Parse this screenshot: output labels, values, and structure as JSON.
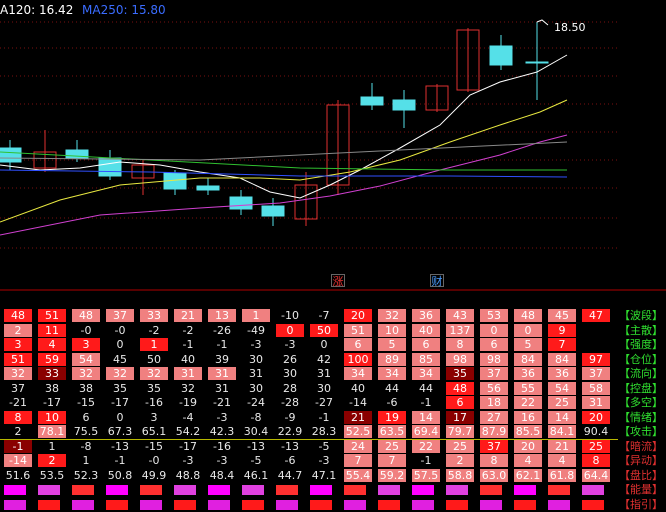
{
  "header": {
    "ma120_label": "A120: 16.42",
    "ma250_label": "MA250: 15.80"
  },
  "chart": {
    "peak_label": "18.50",
    "marker_a": "涨",
    "marker_b": "财",
    "colors": {
      "up": "#e03030",
      "down": "#55e0e8",
      "ma1": "#ffffff",
      "ma2": "#e8e840",
      "ma3": "#d040d0",
      "ma4": "#30c030",
      "ma5": "#3050ff",
      "ma6": "#888888"
    }
  },
  "grid": {
    "rows": [
      {
        "label": "【波段】",
        "label_color": "#30e030",
        "values": [
          "48",
          "51",
          "48",
          "37",
          "33",
          "21",
          "13",
          "1",
          "-10",
          "-7",
          "20",
          "32",
          "36",
          "43",
          "53",
          "48",
          "45",
          "47"
        ],
        "colors": [
          "r",
          "R",
          "P",
          "P",
          "P",
          "P",
          "P",
          "P",
          "n",
          "n",
          "R",
          "P",
          "P",
          "P",
          "P",
          "P",
          "P",
          "R"
        ]
      },
      {
        "label": "【主散】",
        "label_color": "#30e030",
        "values": [
          "2",
          "11",
          "-0",
          "-0",
          "-2",
          "-2",
          "-26",
          "-49",
          "0",
          "50",
          "51",
          "10",
          "40",
          "137",
          "0",
          "0",
          "9",
          ""
        ],
        "colors": [
          "P",
          "R",
          "n",
          "n",
          "n",
          "n",
          "n",
          "n",
          "R",
          "R",
          "P",
          "P",
          "P",
          "P",
          "P",
          "P",
          "R",
          "n"
        ]
      },
      {
        "label": "【强度】",
        "label_color": "#30e030",
        "values": [
          "3",
          "4",
          "3",
          "0",
          "1",
          "-1",
          "-1",
          "-3",
          "-3",
          "0",
          "6",
          "5",
          "6",
          "8",
          "6",
          "5",
          "7",
          ""
        ],
        "colors": [
          "R",
          "R",
          "R",
          "n",
          "R",
          "n",
          "n",
          "n",
          "n",
          "n",
          "P",
          "P",
          "P",
          "P",
          "P",
          "P",
          "R",
          "n"
        ]
      },
      {
        "label": "【仓位】",
        "label_color": "#30e030",
        "values": [
          "51",
          "59",
          "54",
          "45",
          "50",
          "40",
          "39",
          "30",
          "26",
          "42",
          "100",
          "89",
          "85",
          "98",
          "98",
          "84",
          "84",
          "97"
        ],
        "colors": [
          "R",
          "R",
          "P",
          "n",
          "n",
          "n",
          "n",
          "n",
          "n",
          "n",
          "R",
          "P",
          "P",
          "P",
          "P",
          "P",
          "P",
          "R"
        ]
      },
      {
        "label": "【流向】",
        "label_color": "#30e030",
        "values": [
          "32",
          "33",
          "32",
          "32",
          "32",
          "31",
          "31",
          "31",
          "30",
          "31",
          "34",
          "34",
          "34",
          "35",
          "37",
          "36",
          "36",
          "37"
        ],
        "colors": [
          "P",
          "D",
          "P",
          "P",
          "P",
          "P",
          "P",
          "n",
          "n",
          "n",
          "P",
          "P",
          "P",
          "D",
          "P",
          "P",
          "P",
          "P"
        ]
      },
      {
        "label": "【控盘】",
        "label_color": "#30e030",
        "values": [
          "37",
          "38",
          "38",
          "35",
          "35",
          "32",
          "31",
          "30",
          "28",
          "30",
          "40",
          "44",
          "44",
          "48",
          "56",
          "55",
          "54",
          "58"
        ],
        "colors": [
          "n",
          "n",
          "n",
          "n",
          "n",
          "n",
          "n",
          "n",
          "n",
          "n",
          "n",
          "n",
          "n",
          "R",
          "P",
          "P",
          "P",
          "P"
        ]
      },
      {
        "label": "【多空】",
        "label_color": "#30e030",
        "values": [
          "-21",
          "-17",
          "-15",
          "-17",
          "-16",
          "-19",
          "-21",
          "-24",
          "-28",
          "-27",
          "-14",
          "-6",
          "-1",
          "6",
          "18",
          "22",
          "25",
          "31"
        ],
        "colors": [
          "n",
          "n",
          "n",
          "n",
          "n",
          "n",
          "n",
          "n",
          "n",
          "n",
          "n",
          "n",
          "n",
          "R",
          "P",
          "P",
          "P",
          "P"
        ]
      },
      {
        "label": "【情绪】",
        "label_color": "#30e030",
        "values": [
          "8",
          "10",
          "6",
          "0",
          "3",
          "-4",
          "-3",
          "-8",
          "-9",
          "-1",
          "21",
          "19",
          "14",
          "17",
          "27",
          "16",
          "14",
          "20"
        ],
        "colors": [
          "R",
          "R",
          "n",
          "n",
          "n",
          "n",
          "n",
          "n",
          "n",
          "n",
          "D",
          "R",
          "P",
          "D",
          "P",
          "P",
          "P",
          "R"
        ]
      },
      {
        "label": "【攻击】",
        "label_color": "#30e030",
        "values": [
          "2 75.5",
          "78.1",
          "75.5",
          "67.3",
          "65.1",
          "54.2",
          "42.3",
          "30.4",
          "22.9",
          "28.3",
          "52.5",
          "63.5",
          "69.4",
          "79.7",
          "87.9",
          "85.5",
          "84.1",
          "90.4"
        ],
        "colors": [
          "n",
          "P",
          "n",
          "n",
          "n",
          "n",
          "n",
          "n",
          "n",
          "n",
          "P",
          "P",
          "P",
          "P",
          "P",
          "P",
          "P",
          "n"
        ]
      },
      {
        "label": "【暗流】",
        "label_color": "#e03030",
        "values": [
          "-1",
          "1",
          "-8",
          "-13",
          "-15",
          "-17",
          "-16",
          "-13",
          "-13",
          "-5",
          "24",
          "25",
          "22",
          "25",
          "37",
          "20",
          "21",
          "25"
        ],
        "colors": [
          "D",
          "n",
          "n",
          "n",
          "n",
          "n",
          "n",
          "n",
          "n",
          "n",
          "P",
          "P",
          "P",
          "P",
          "R",
          "P",
          "P",
          "R"
        ]
      },
      {
        "label": "【异动】",
        "label_color": "#e03030",
        "values": [
          "-14",
          "2",
          "1",
          "-1",
          "-0",
          "-3",
          "-3",
          "-5",
          "-6",
          "-3",
          "7",
          "7",
          "-1",
          "2",
          "8",
          "4",
          "4",
          "8"
        ],
        "colors": [
          "P",
          "R",
          "n",
          "n",
          "n",
          "n",
          "n",
          "n",
          "n",
          "n",
          "P",
          "P",
          "n",
          "P",
          "P",
          "P",
          "P",
          "R"
        ]
      },
      {
        "label": "【盘比】",
        "label_color": "#e03030",
        "values": [
          "51.6",
          "53.5",
          "52.3",
          "50.8",
          "49.9",
          "48.8",
          "48.4",
          "46.1",
          "44.7",
          "47.1",
          "55.4",
          "59.2",
          "57.5",
          "58.8",
          "63.0",
          "62.1",
          "61.8",
          "64.4"
        ],
        "colors": [
          "n",
          "n",
          "n",
          "n",
          "n",
          "n",
          "n",
          "n",
          "n",
          "n",
          "P",
          "P",
          "P",
          "P",
          "P",
          "P",
          "P",
          "P"
        ]
      },
      {
        "label": "【能量】",
        "label_color": "#e03030",
        "values": [],
        "colors": []
      },
      {
        "label": "【指引】",
        "label_color": "#e03030",
        "values": [],
        "colors": []
      }
    ]
  }
}
